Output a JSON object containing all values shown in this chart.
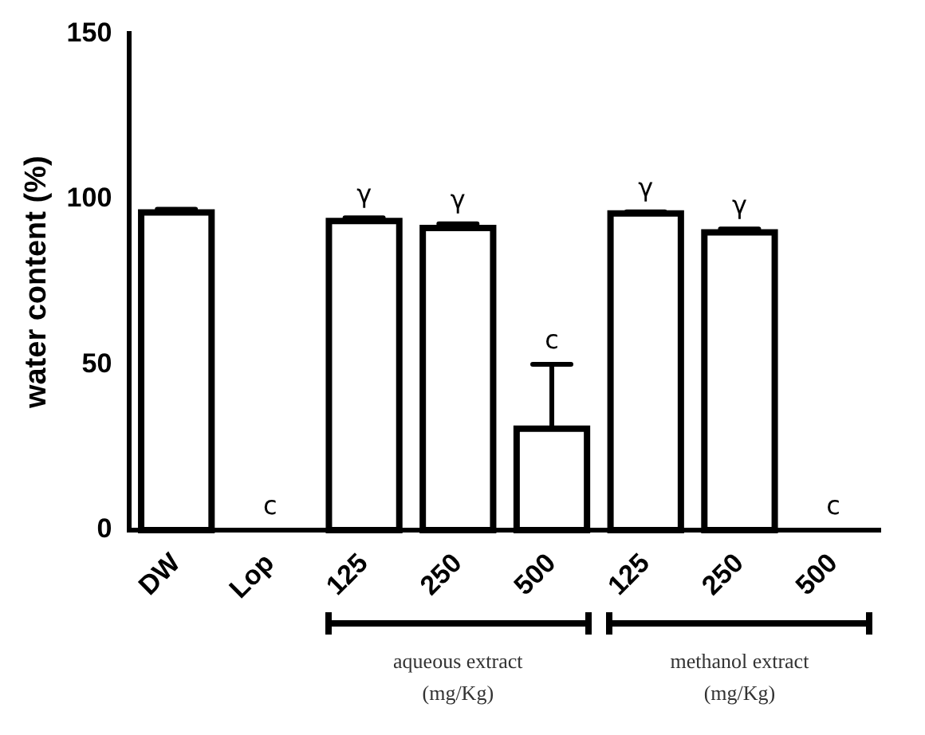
{
  "chart_data": {
    "type": "bar",
    "ylabel": "water content (%)",
    "categories": [
      "DW",
      "Lop",
      "125",
      "250",
      "500",
      "125",
      "250",
      "500"
    ],
    "values": [
      96,
      0,
      93.4,
      91.3,
      30.7,
      95.7,
      90,
      0
    ],
    "errors": [
      1,
      null,
      1,
      1.3,
      19.4,
      0.5,
      1,
      null
    ],
    "value_labels": [
      null,
      "c",
      "γ",
      "γ",
      "c",
      "γ",
      "γ",
      "c"
    ],
    "color": "#000000",
    "ylim": [
      0,
      150
    ],
    "yticks": [
      0,
      50,
      100,
      150
    ],
    "grid": false,
    "legend": false,
    "annotations": [
      "aqueous extract\n(mg/Kg)",
      "methanol extract\n(mg/Kg)"
    ]
  }
}
